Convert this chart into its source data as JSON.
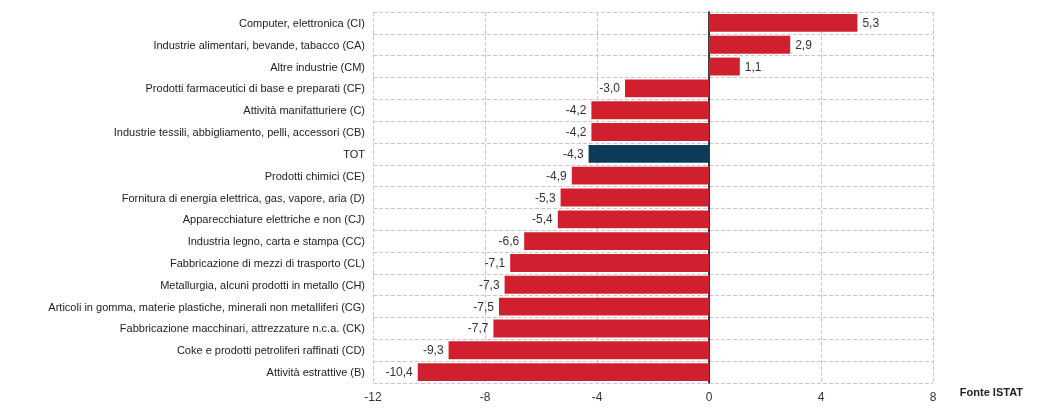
{
  "chart_data": {
    "type": "bar",
    "orientation": "horizontal",
    "categories": [
      "Computer, elettronica (CI)",
      "Industrie alimentari, bevande, tabacco (CA)",
      "Altre industrie (CM)",
      "Prodotti farmaceutici di base e preparati (CF)",
      "Attività manifatturiere (C)",
      "Industrie tessili, abbigliamento, pelli, accessori (CB)",
      "TOT",
      "Prodotti chimici (CE)",
      "Fornitura di energia elettrica, gas, vapore, aria (D)",
      "Apparecchiature elettriche e non (CJ)",
      "Industria legno, carta e stampa (CC)",
      "Fabbricazione di mezzi di trasporto (CL)",
      "Metallurgia, alcuni prodotti in metallo (CH)",
      "Articoli in gomma, materie plastiche, minerali non metalliferi (CG)",
      "Fabbricazione macchinari, attrezzature n.c.a. (CK)",
      "Coke e prodotti petroliferi raffinati (CD)",
      "Attività estrattive (B)"
    ],
    "values": [
      5.3,
      2.9,
      1.1,
      -3.0,
      -4.2,
      -4.2,
      -4.3,
      -4.9,
      -5.3,
      -5.4,
      -6.6,
      -7.1,
      -7.3,
      -7.5,
      -7.7,
      -9.3,
      -10.4
    ],
    "value_labels": [
      "5,3",
      "2,9",
      "1,1",
      "-3,0",
      "-4,2",
      "-4,2",
      "-4,3",
      "-4,9",
      "-5,3",
      "-5,4",
      "-6,6",
      "-7,1",
      "-7,3",
      "-7,5",
      "-7,7",
      "-9,3",
      "-10,4"
    ],
    "colors": [
      "#d0202e",
      "#d0202e",
      "#d0202e",
      "#d0202e",
      "#d0202e",
      "#d0202e",
      "#0d3b5a",
      "#d0202e",
      "#d0202e",
      "#d0202e",
      "#d0202e",
      "#d0202e",
      "#d0202e",
      "#d0202e",
      "#d0202e",
      "#d0202e",
      "#d0202e"
    ],
    "xlim": [
      -12,
      8
    ],
    "xticks": [
      -12,
      -8,
      -4,
      0,
      4,
      8
    ],
    "grid": true,
    "annotations": [
      "Fonte ISTAT"
    ]
  }
}
